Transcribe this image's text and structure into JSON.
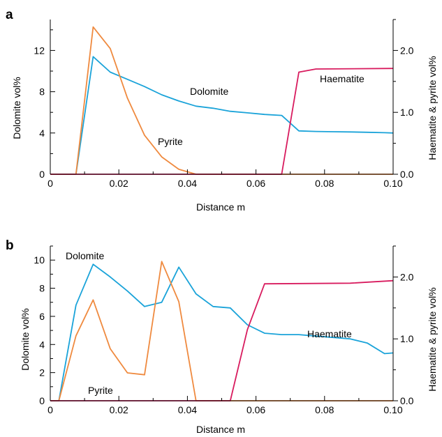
{
  "chart_data": [
    {
      "type": "line",
      "panel_label": "a",
      "xlabel": "Distance m",
      "ylabel": "Dolomite vol%",
      "ylabel_right": "Haematite & pyrite vol%",
      "xlim": [
        0,
        0.1
      ],
      "ylim": [
        0,
        15
      ],
      "ylim_right": [
        0,
        2.5
      ],
      "x_ticks": [
        0,
        0.02,
        0.04,
        0.06,
        0.08,
        0.1
      ],
      "x_tick_labels": [
        "0",
        "0.02",
        "0.04",
        "0.06",
        "0.08",
        "0.10"
      ],
      "y_ticks": [
        0,
        4,
        8,
        12
      ],
      "y_tick_labels": [
        "0",
        "4",
        "8",
        "12"
      ],
      "y_ticks_right": [
        0,
        1,
        2
      ],
      "y_tick_labels_right": [
        "0.0",
        "1.0",
        "2.0"
      ],
      "grid": false,
      "series": [
        {
          "name": "Dolomite",
          "axis": "left",
          "color": "#1aa3d9",
          "x": [
            0,
            0.0075,
            0.0125,
            0.0175,
            0.0225,
            0.0275,
            0.0325,
            0.0375,
            0.0425,
            0.0475,
            0.0525,
            0.0575,
            0.0625,
            0.0675,
            0.0725,
            0.0775,
            0.0825,
            0.0875,
            0.0925,
            0.0975,
            0.1
          ],
          "y": [
            0,
            0,
            11.4,
            9.9,
            9.2,
            8.5,
            7.7,
            7.1,
            6.6,
            6.4,
            6.1,
            5.95,
            5.8,
            5.7,
            4.2,
            4.15,
            4.12,
            4.1,
            4.07,
            4.03,
            4.0
          ]
        },
        {
          "name": "Pyrite",
          "axis": "right",
          "color": "#ef8a3f",
          "x": [
            0,
            0.0075,
            0.0125,
            0.0175,
            0.0225,
            0.0275,
            0.0325,
            0.0375,
            0.0425,
            0.1
          ],
          "y": [
            0,
            0,
            2.38,
            2.03,
            1.23,
            0.63,
            0.28,
            0.08,
            0,
            0
          ]
        },
        {
          "name": "Haematite",
          "axis": "right",
          "color": "#d81b5e",
          "x": [
            0,
            0.0675,
            0.0725,
            0.0775,
            0.1
          ],
          "y": [
            0,
            0,
            1.65,
            1.7,
            1.71
          ]
        }
      ]
    },
    {
      "type": "line",
      "panel_label": "b",
      "xlabel": "Distance m",
      "ylabel": "Dolomite vol%",
      "ylabel_right": "Haematite & pyrite vol%",
      "xlim": [
        0,
        0.1
      ],
      "ylim": [
        0,
        11
      ],
      "ylim_right": [
        0,
        2.5
      ],
      "x_ticks": [
        0,
        0.02,
        0.04,
        0.06,
        0.08,
        0.1
      ],
      "x_tick_labels": [
        "0",
        "0.02",
        "0.04",
        "0.06",
        "0.08",
        "0.10"
      ],
      "y_ticks": [
        0,
        2,
        4,
        6,
        8,
        10
      ],
      "y_tick_labels": [
        "0",
        "2",
        "4",
        "6",
        "8",
        "10"
      ],
      "y_ticks_right": [
        0,
        1,
        2
      ],
      "y_tick_labels_right": [
        "0.0",
        "1.0",
        "2.0"
      ],
      "grid": false,
      "series": [
        {
          "name": "Dolomite",
          "axis": "left",
          "color": "#1aa3d9",
          "x": [
            0,
            0.0025,
            0.0075,
            0.0125,
            0.0175,
            0.0225,
            0.0275,
            0.0325,
            0.0375,
            0.0425,
            0.0475,
            0.0525,
            0.0575,
            0.0625,
            0.0675,
            0.0725,
            0.0775,
            0.0825,
            0.0875,
            0.0925,
            0.0975,
            0.1
          ],
          "y": [
            0,
            0,
            6.8,
            9.7,
            8.8,
            7.8,
            6.7,
            7.0,
            9.5,
            7.6,
            6.7,
            6.6,
            5.4,
            4.8,
            4.7,
            4.7,
            4.6,
            4.5,
            4.4,
            4.1,
            3.35,
            3.4
          ]
        },
        {
          "name": "Pyrite",
          "axis": "right",
          "color": "#ef8a3f",
          "x": [
            0,
            0.0025,
            0.0075,
            0.0125,
            0.0175,
            0.0225,
            0.0275,
            0.0325,
            0.0375,
            0.0425,
            0.1
          ],
          "y": [
            0,
            0,
            1.05,
            1.63,
            0.84,
            0.45,
            0.42,
            2.25,
            1.6,
            0,
            0
          ]
        },
        {
          "name": "Haematite",
          "axis": "right",
          "color": "#d81b5e",
          "x": [
            0,
            0.0525,
            0.0575,
            0.0625,
            0.0875,
            0.1
          ],
          "y": [
            0,
            0,
            1.15,
            1.89,
            1.9,
            1.94
          ]
        }
      ]
    }
  ]
}
